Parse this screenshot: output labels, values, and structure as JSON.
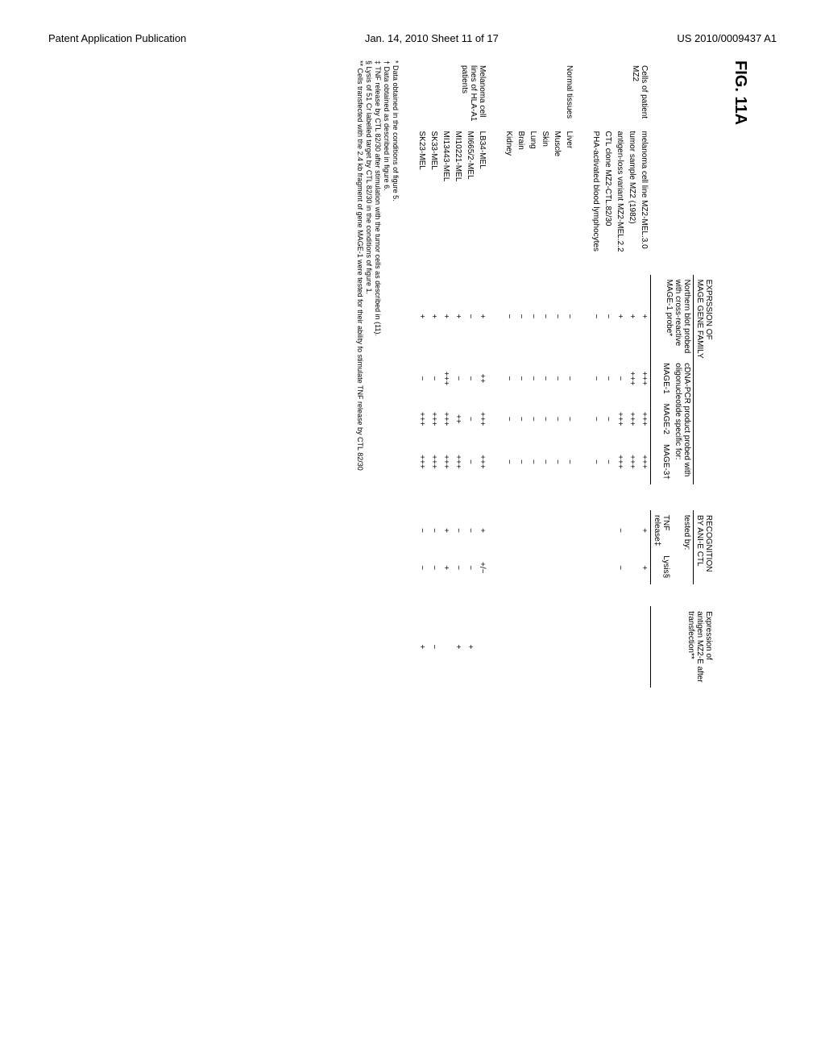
{
  "header": {
    "left": "Patent Application Publication",
    "center": "Jan. 14, 2010  Sheet 11 of 17",
    "right": "US 2010/0009437 A1"
  },
  "figure_label": "FIG. 11A",
  "superheaders": {
    "expr": "EXPRSSION OF\nMAGE GENE FAMILY",
    "recog": "RECOGNITION\nBY ANI-E CTL"
  },
  "subheaders": {
    "northern": "Northern blot probed\nwith cross-reactive\nMAGE-1 probe*",
    "cdna": "cDNA-PCR product probed with\noligonucleotide specific for:",
    "mage1": "MAGE-1",
    "mage2": "MAGE-2",
    "mage3": "MAGE-3†",
    "tested": "tested by:",
    "tnf": "TNF\nrelease‡",
    "lysis": "Lysis§",
    "transfect": "Expression of\nantigen MZ2-E after\ntransfection**"
  },
  "sections": [
    {
      "label": "Cells of patient\nMZ2",
      "rows": [
        {
          "name": "melanoma cell line MZ2-MEL.3.0",
          "nb": "+",
          "m1": "+++",
          "m2": "+++",
          "m3": "+++",
          "tnf": "+",
          "lys": "+",
          "tr": ""
        },
        {
          "name": "tumor sample MZ2 (1982)",
          "nb": "+",
          "m1": "+++",
          "m2": "+++",
          "m3": "+++",
          "tnf": "",
          "lys": "",
          "tr": ""
        },
        {
          "name": "antigen-loss variant MZ2-MEL.2.2",
          "nb": "+",
          "m1": "−",
          "m2": "+++",
          "m3": "+++",
          "tnf": "−",
          "lys": "−",
          "tr": ""
        },
        {
          "name": "CTL clone MZ2-CTL.82/30",
          "nb": "−",
          "m1": "−",
          "m2": "−",
          "m3": "−",
          "tnf": "",
          "lys": "",
          "tr": ""
        },
        {
          "name": "PHA-activated blood lymphocytes",
          "nb": "−",
          "m1": "−",
          "m2": "−",
          "m3": "−",
          "tnf": "",
          "lys": "",
          "tr": ""
        }
      ]
    },
    {
      "label": "Normal tissues",
      "rows": [
        {
          "name": "Liver",
          "nb": "−",
          "m1": "−",
          "m2": "−",
          "m3": "−",
          "tnf": "",
          "lys": "",
          "tr": ""
        },
        {
          "name": "Muscle",
          "nb": "−",
          "m1": "−",
          "m2": "−",
          "m3": "−",
          "tnf": "",
          "lys": "",
          "tr": ""
        },
        {
          "name": "Skin",
          "nb": "−",
          "m1": "−",
          "m2": "−",
          "m3": "−",
          "tnf": "",
          "lys": "",
          "tr": ""
        },
        {
          "name": "Lung",
          "nb": "−",
          "m1": "−",
          "m2": "−",
          "m3": "−",
          "tnf": "",
          "lys": "",
          "tr": ""
        },
        {
          "name": "Brain",
          "nb": "−",
          "m1": "−",
          "m2": "−",
          "m3": "−",
          "tnf": "",
          "lys": "",
          "tr": ""
        },
        {
          "name": "Kidney",
          "nb": "−",
          "m1": "−",
          "m2": "−",
          "m3": "−",
          "tnf": "",
          "lys": "",
          "tr": ""
        }
      ]
    },
    {
      "label": "Melanoma cell\nlines of HLA-A1\npatients",
      "rows": [
        {
          "name": "LB34-MEL",
          "nb": "+",
          "m1": "++",
          "m2": "+++",
          "m3": "+++",
          "tnf": "+",
          "lys": "+/−",
          "tr": ""
        },
        {
          "name": "MI665/2-MEL",
          "nb": "−",
          "m1": "−",
          "m2": "−",
          "m3": "−",
          "tnf": "−",
          "lys": "−",
          "tr": "+"
        },
        {
          "name": "MI10221-MEL",
          "nb": "+",
          "m1": "−",
          "m2": "++",
          "m3": "+++",
          "tnf": "−",
          "lys": "−",
          "tr": "+"
        },
        {
          "name": "MI13443-MEL",
          "nb": "+",
          "m1": "+++",
          "m2": "+++",
          "m3": "+++",
          "tnf": "+",
          "lys": "+",
          "tr": ""
        },
        {
          "name": "SK33-MEL",
          "nb": "+",
          "m1": "−",
          "m2": "+++",
          "m3": "+++",
          "tnf": "−",
          "lys": "−",
          "tr": "−"
        },
        {
          "name": "SK23-MEL",
          "nb": "+",
          "m1": "−",
          "m2": "+++",
          "m3": "+++",
          "tnf": "−",
          "lys": "−",
          "tr": "+"
        }
      ]
    }
  ],
  "footnotes": [
    "* Data obtained in the conditions of figure 5.",
    "† Data obtained as described in figure 6.",
    "‡ TNF release by CTL 82/30 after stimulation with the tumor cells as described in (11).",
    "§ Lysis of 51 Cr labelled target by CTL 82/30 in the conditions of figure 1.",
    "** Cells transfected with the 2.4 kb fragment of gene MAGE-1 were tested for their ability fo stimulate TNF release by CTL 82/30"
  ]
}
